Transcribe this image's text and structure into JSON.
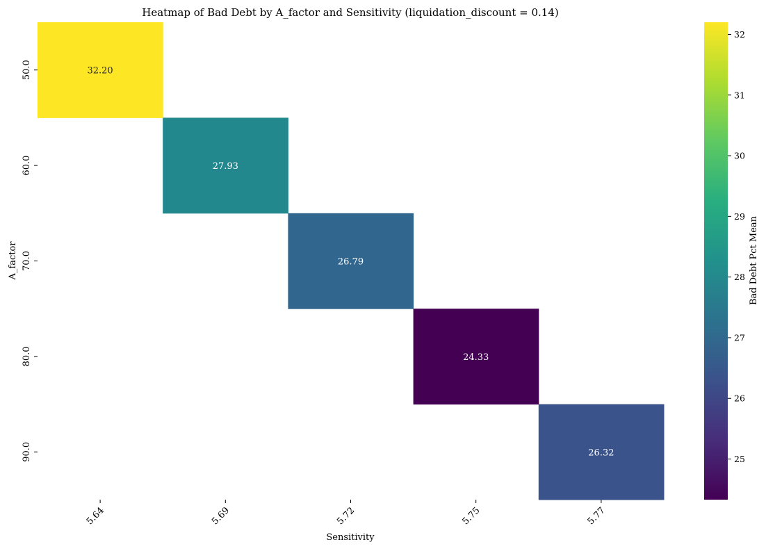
{
  "chart_data": {
    "type": "heatmap",
    "title": "Heatmap of Bad Debt by A_factor and Sensitivity (liquidation_discount = 0.14)",
    "xlabel": "Sensitivity",
    "ylabel": "A_factor",
    "x_categories": [
      "5.64",
      "5.69",
      "5.72",
      "5.75",
      "5.77"
    ],
    "y_categories": [
      "50.0",
      "60.0",
      "70.0",
      "80.0",
      "90.0"
    ],
    "cells": [
      {
        "row": 0,
        "col": 0,
        "value": 32.2,
        "label": "32.20",
        "color": "#fde725"
      },
      {
        "row": 1,
        "col": 1,
        "value": 27.93,
        "label": "27.93",
        "color": "#23888e"
      },
      {
        "row": 2,
        "col": 2,
        "value": 26.79,
        "label": "26.79",
        "color": "#31668e"
      },
      {
        "row": 3,
        "col": 3,
        "value": 24.33,
        "label": "24.33",
        "color": "#440154"
      },
      {
        "row": 4,
        "col": 4,
        "value": 26.32,
        "label": "26.32",
        "color": "#3a538b"
      }
    ],
    "colorbar": {
      "label": "Bad Debt Pct Mean",
      "colormap": "viridis",
      "vmin": 24.33,
      "vmax": 32.2,
      "ticks": [
        25,
        26,
        27,
        28,
        29,
        30,
        31,
        32
      ]
    },
    "missing_cells": "blank",
    "grid": false,
    "legend": "colorbar-right"
  }
}
